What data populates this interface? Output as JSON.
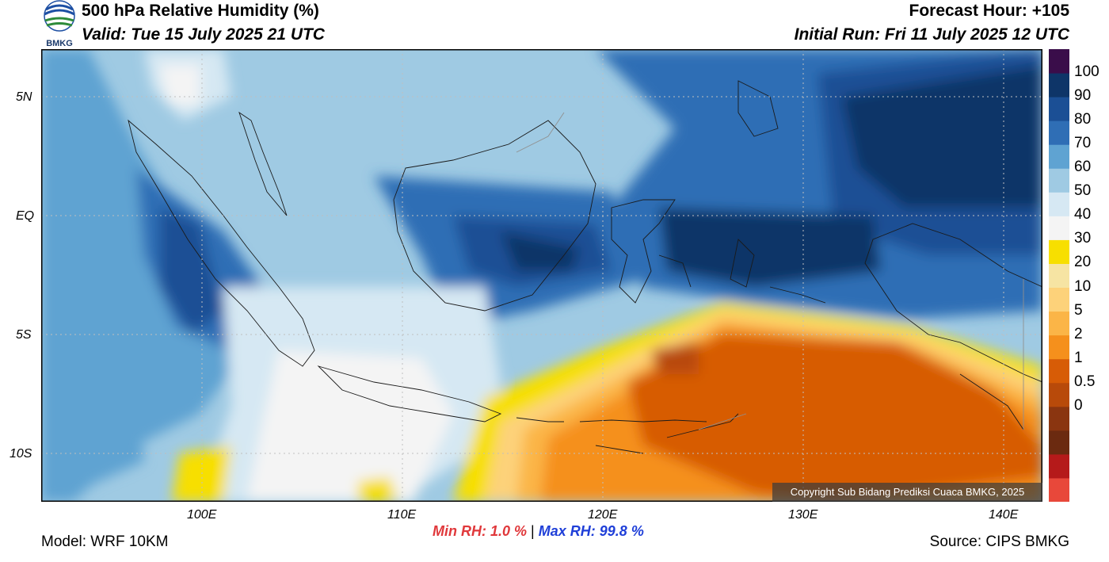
{
  "header": {
    "title": "500 hPa Relative Humidity (%)",
    "valid": "Valid: Tue 15 July 2025 21 UTC",
    "forecast_hour": "Forecast Hour: +105",
    "initial_run": "Initial Run: Fri 11 July 2025 12 UTC"
  },
  "logo": {
    "text": "BMKG"
  },
  "map": {
    "extent": {
      "lon_min": 92,
      "lon_max": 142,
      "lat_min": -12,
      "lat_max": 7
    },
    "lat_labels": [
      "5N",
      "EQ",
      "5S",
      "10S"
    ],
    "lon_labels": [
      "100E",
      "110E",
      "120E",
      "130E",
      "140E"
    ],
    "copyright": "Copyright Sub Bidang Prediksi Cuaca BMKG, 2025"
  },
  "colorbar": {
    "labels": [
      "100",
      "90",
      "80",
      "70",
      "60",
      "50",
      "40",
      "30",
      "20",
      "10",
      "5",
      "2",
      "1",
      "0.5",
      "0"
    ],
    "colors": [
      "#e8483a",
      "#b51a1a",
      "#6b2a10",
      "#8a3510",
      "#b84a0a",
      "#d75c06",
      "#f5901c",
      "#fbb547",
      "#fdd27a",
      "#f6e4a3",
      "#f7df00",
      "#f4f4f4",
      "#d6e8f3",
      "#9fcae3",
      "#5fa3d2",
      "#2f6eb5",
      "#1b4f95",
      "#0e3568",
      "#3a0d4a"
    ]
  },
  "stats": {
    "min_label": "Min RH:",
    "min_value": "1.0 %",
    "separator": "|",
    "max_label": "Max RH:",
    "max_value": "99.8 %",
    "min_color": "#e0383b",
    "max_color": "#1f3fd8"
  },
  "footer": {
    "model": "Model: WRF 10KM",
    "source": "Source: CIPS BMKG"
  }
}
